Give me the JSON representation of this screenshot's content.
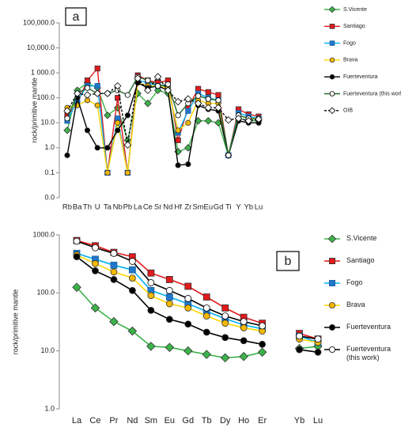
{
  "chart_data": [
    {
      "type": "line",
      "panel_label": "a",
      "y_label": "rock/primitive mantle",
      "log_scale": true,
      "legend": "right",
      "categories": [
        "Rb",
        "Ba",
        "Th",
        "U",
        "Ta",
        "Nb",
        "Pb",
        "La",
        "Ce",
        "Sr",
        "Nd",
        "Hf",
        "Zr",
        "Sm",
        "Eu",
        "Gd",
        "Ti",
        "Y",
        "Yb",
        "Lu"
      ],
      "ylim": [
        0.01,
        100000
      ],
      "yticks": [
        {
          "value": 0.01,
          "label": "0.0"
        },
        0.1,
        {
          "value": 1,
          "label": "1.0"
        },
        {
          "value": 10,
          "label": "10.0"
        },
        {
          "value": 100,
          "label": "100.0"
        },
        {
          "value": 1000,
          "label": "1 000.0"
        },
        {
          "value": 10000,
          "label": "10,000.0"
        },
        {
          "value": 100000,
          "label": "100,000.0"
        }
      ],
      "series": [
        {
          "name": "S.Vicente",
          "color": "#3cb34a",
          "marker": "diamond",
          "marker_fill": "#3cb34a",
          "values": [
            5,
            200,
            400,
            250,
            20,
            40,
            2,
            150,
            60,
            200,
            150,
            0.7,
            1,
            12,
            12,
            10,
            0.5,
            15,
            12,
            12
          ]
        },
        {
          "name": "Santiago",
          "color": "#e31a1c",
          "marker": "square",
          "marker_fill": "#e31a1c",
          "values": [
            20,
            60,
            500,
            1500,
            0.1,
            100,
            0.1,
            800,
            500,
            400,
            500,
            2,
            40,
            230,
            170,
            130,
            0.5,
            35,
            22,
            18
          ]
        },
        {
          "name": "Fogo",
          "color": "#00b0f0",
          "marker": "square",
          "marker_fill": "#1f78c8",
          "values": [
            12,
            80,
            300,
            300,
            0.1,
            15,
            0.1,
            500,
            400,
            300,
            300,
            4,
            30,
            150,
            100,
            80,
            0.5,
            25,
            18,
            15
          ]
        },
        {
          "name": "Brava",
          "color": "#ffd700",
          "marker": "circle",
          "marker_fill": "#f5b800",
          "values": [
            40,
            50,
            80,
            50,
            0.1,
            10,
            0.1,
            400,
            300,
            300,
            250,
            5,
            10,
            80,
            60,
            60,
            0.5,
            20,
            15,
            15
          ]
        },
        {
          "name": "Fuerteventura",
          "color": "#000000",
          "marker": "circle",
          "marker_fill": "#000000",
          "values": [
            0.5,
            100,
            5,
            1,
            1,
            5,
            20,
            400,
            250,
            300,
            200,
            0.2,
            0.22,
            50,
            35,
            30,
            0.5,
            12,
            10,
            10
          ]
        },
        {
          "name": "Fuerteventura (this work)",
          "color": "#1e6b2e",
          "marker": "circle",
          "marker_fill": "#ffffff",
          "values": [
            15,
            150,
            250,
            150,
            150,
            200,
            130,
            700,
            500,
            300,
            350,
            20,
            60,
            120,
            90,
            80,
            0.5,
            20,
            15,
            14
          ]
        },
        {
          "name": "OIB",
          "color": "#000000",
          "marker": "diamond",
          "marker_fill": "#ffffff",
          "linestyle": "dashed",
          "values": [
            30,
            150,
            130,
            150,
            150,
            300,
            1.3,
            600,
            200,
            700,
            200,
            70,
            90,
            60,
            40,
            40,
            13,
            15,
            12,
            14
          ]
        }
      ]
    },
    {
      "type": "line",
      "panel_label": "b",
      "y_label": "rock/primitive mantle",
      "log_scale": true,
      "legend": "right",
      "categories": [
        "La",
        "Ce",
        "Pr",
        "Nd",
        "Sm",
        "Eu",
        "Gd",
        "Tb",
        "Dy",
        "Ho",
        "Er",
        null,
        "Yb",
        "Lu"
      ],
      "ylim": [
        1,
        1000
      ],
      "yticks": [
        {
          "value": 1,
          "label": "1.0"
        },
        {
          "value": 10,
          "label": "10.0"
        },
        {
          "value": 100,
          "label": "100.0"
        },
        {
          "value": 1000,
          "label": "1000.0"
        }
      ],
      "series": [
        {
          "name": "S.Vicente",
          "color": "#3cb34a",
          "marker": "diamond",
          "marker_fill": "#3cb34a",
          "values": [
            125,
            55,
            32,
            22,
            12,
            11.5,
            10,
            8.7,
            7.6,
            8,
            9.5,
            null,
            11,
            12
          ]
        },
        {
          "name": "Santiago",
          "color": "#e31a1c",
          "marker": "square",
          "marker_fill": "#e31a1c",
          "values": [
            800,
            650,
            500,
            420,
            220,
            170,
            130,
            85,
            55,
            38,
            30,
            null,
            20,
            16
          ]
        },
        {
          "name": "Fogo",
          "color": "#00b0f0",
          "marker": "square",
          "marker_fill": "#1f78c8",
          "values": [
            480,
            380,
            300,
            250,
            110,
            85,
            65,
            48,
            36,
            28,
            24,
            null,
            18,
            14
          ]
        },
        {
          "name": "Brava",
          "color": "#ffd700",
          "marker": "circle",
          "marker_fill": "#f5b800",
          "values": [
            450,
            320,
            230,
            180,
            90,
            65,
            55,
            40,
            30,
            25,
            22,
            null,
            16,
            14
          ]
        },
        {
          "name": "Fuerteventura",
          "color": "#000000",
          "marker": "circle",
          "marker_fill": "#000000",
          "values": [
            420,
            240,
            170,
            110,
            50,
            35,
            29,
            21,
            17,
            15,
            13,
            null,
            10.5,
            9.5
          ]
        },
        {
          "name": "Fuerteventura (this work)",
          "color": "#000000",
          "marker": "circle",
          "marker_fill": "#ffffff",
          "values": [
            780,
            600,
            480,
            350,
            150,
            110,
            80,
            55,
            40,
            32,
            27,
            null,
            18,
            16
          ]
        }
      ]
    }
  ]
}
